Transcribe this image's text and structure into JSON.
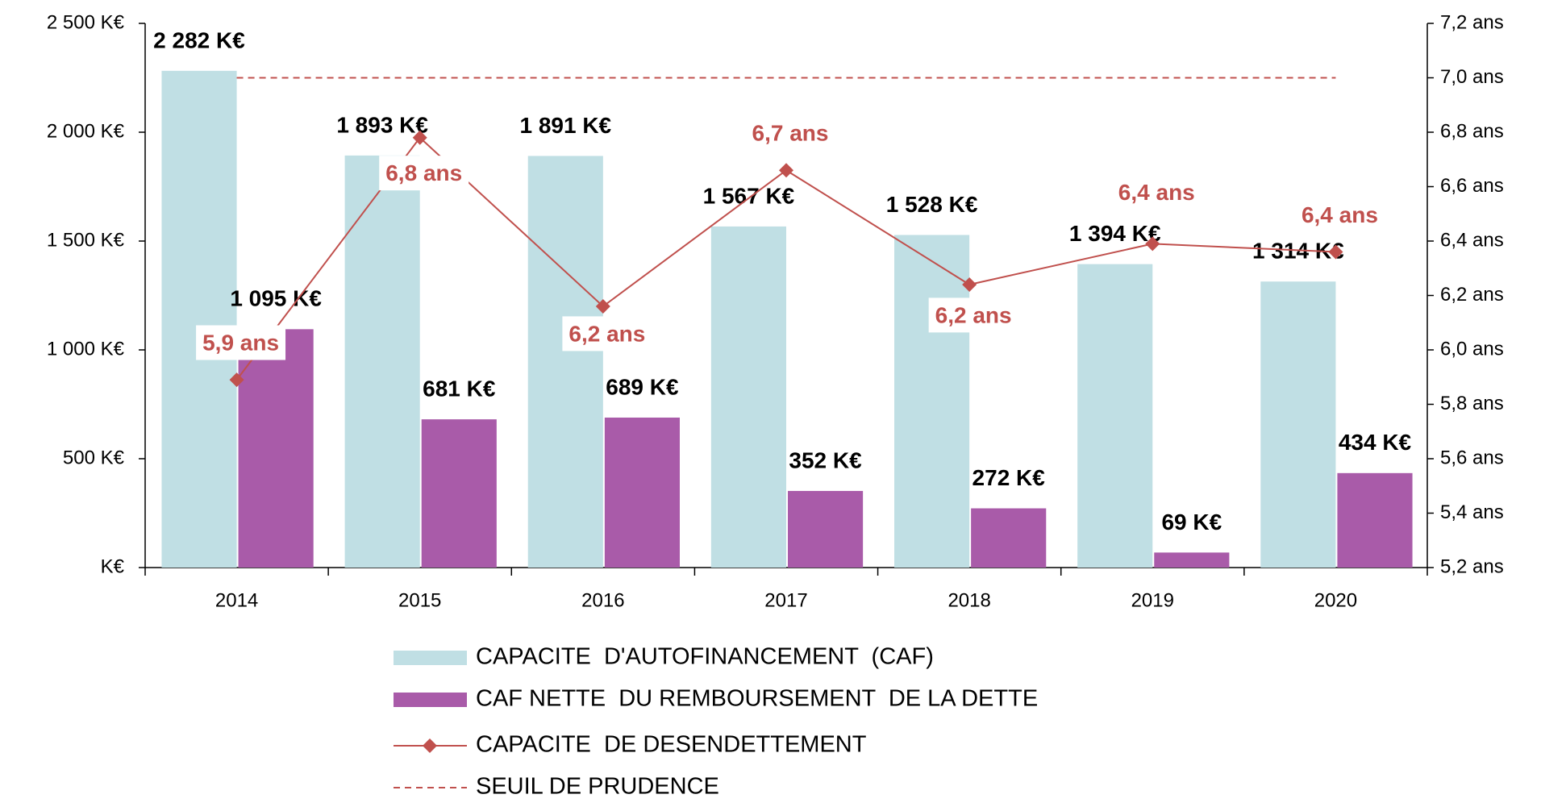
{
  "chart_data": {
    "type": "bar",
    "categories": [
      "2014",
      "2015",
      "2016",
      "2017",
      "2018",
      "2019",
      "2020"
    ],
    "series": [
      {
        "name": "CAPACITE  D'AUTOFINANCEMENT  (CAF)",
        "type": "bar",
        "color": "#c0dfe4",
        "values": [
          2282,
          1893,
          1891,
          1567,
          1528,
          1394,
          1314
        ],
        "value_labels": [
          "2 282 K€",
          "1 893 K€",
          "1 891 K€",
          "1 567 K€",
          "1 528 K€",
          "1 394 K€",
          "1 314 K€"
        ]
      },
      {
        "name": "CAF NETTE  DU REMBOURSEMENT  DE LA DETTE",
        "type": "bar",
        "color": "#a95ba9",
        "values": [
          1095,
          681,
          689,
          352,
          272,
          69,
          434
        ],
        "value_labels": [
          "1 095 K€",
          "681 K€",
          "689 K€",
          "352 K€",
          "272 K€",
          "69 K€",
          "434 K€"
        ]
      },
      {
        "name": "CAPACITE  DE DESENDETTEMENT",
        "type": "line",
        "axis": "y2",
        "color": "#c0504d",
        "marker": "diamond",
        "values": [
          5.89,
          6.78,
          6.16,
          6.66,
          6.24,
          6.39,
          6.36
        ],
        "value_labels": [
          "5,9 ans",
          "6,8 ans",
          "6,2 ans",
          "6,7 ans",
          "6,2 ans",
          "6,4 ans",
          "6,4 ans"
        ]
      },
      {
        "name": "SEUIL DE PRUDENCE",
        "type": "line",
        "axis": "y2",
        "color": "#c0504d",
        "dashed": true,
        "values": [
          7.0,
          7.0,
          7.0,
          7.0,
          7.0,
          7.0,
          7.0
        ]
      }
    ],
    "ylim": [
      0,
      2500
    ],
    "yticks": [
      {
        "value": 0,
        "label": "K€"
      },
      {
        "value": 500,
        "label": "500 K€"
      },
      {
        "value": 1000,
        "label": "1 000 K€"
      },
      {
        "value": 1500,
        "label": "1 500 K€"
      },
      {
        "value": 2000,
        "label": "2 000 K€"
      },
      {
        "value": 2500,
        "label": "2 500 K€"
      }
    ],
    "y2lim": [
      5.2,
      7.2
    ],
    "y2ticks": [
      {
        "value": 5.2,
        "label": "5,2 ans"
      },
      {
        "value": 5.4,
        "label": "5,4 ans"
      },
      {
        "value": 5.6,
        "label": "5,6 ans"
      },
      {
        "value": 5.8,
        "label": "5,8 ans"
      },
      {
        "value": 6.0,
        "label": "6,0 ans"
      },
      {
        "value": 6.2,
        "label": "6,2 ans"
      },
      {
        "value": 6.4,
        "label": "6,4 ans"
      },
      {
        "value": 6.6,
        "label": "6,6 ans"
      },
      {
        "value": 6.8,
        "label": "6,8 ans"
      },
      {
        "value": 7.0,
        "label": "7,0 ans"
      },
      {
        "value": 7.2,
        "label": "7,2 ans"
      }
    ],
    "legend": "bottom"
  }
}
